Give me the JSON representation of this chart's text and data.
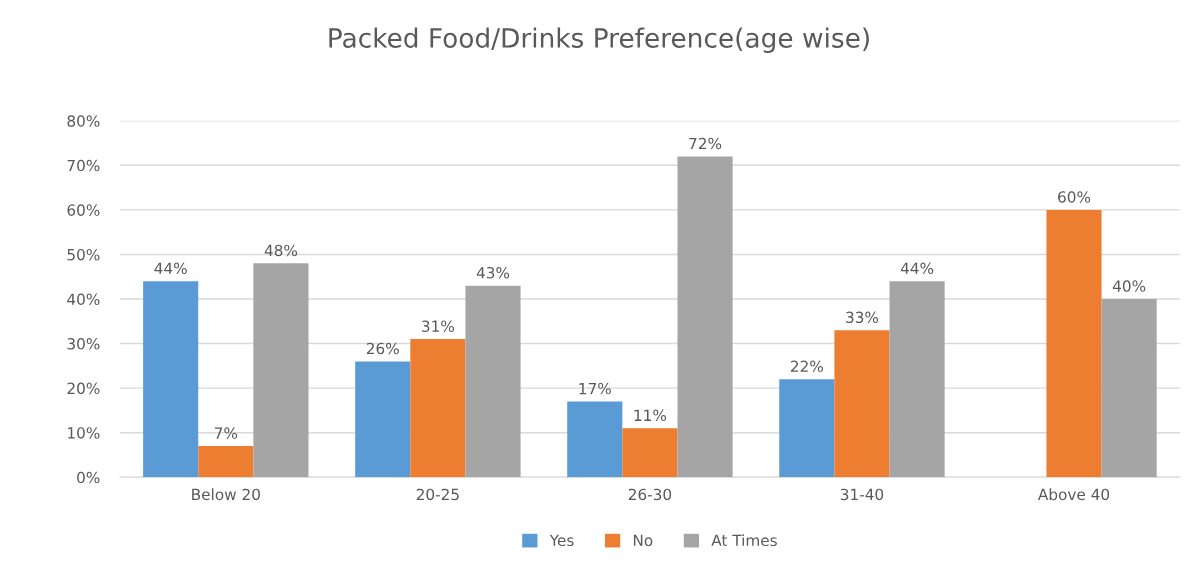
{
  "chart_data": {
    "type": "bar",
    "title": "Packed Food/Drinks Preference(age wise)",
    "categories": [
      "Below 20",
      "20-25",
      "26-30",
      "31-40",
      "Above 40"
    ],
    "series": [
      {
        "name": "Yes",
        "color": "#5b9bd5",
        "values": [
          44,
          26,
          17,
          22,
          null
        ],
        "value_labels": [
          "44%",
          "26%",
          "17%",
          "22%",
          null
        ]
      },
      {
        "name": "No",
        "color": "#ed7d31",
        "values": [
          7,
          31,
          11,
          33,
          60
        ],
        "value_labels": [
          "7%",
          "31%",
          "11%",
          "33%",
          "60%"
        ]
      },
      {
        "name": "At Times",
        "color": "#a5a5a5",
        "values": [
          48,
          43,
          72,
          44,
          40
        ],
        "value_labels": [
          "48%",
          "43%",
          "72%",
          "44%",
          "40%"
        ]
      }
    ],
    "ylim": [
      0,
      80
    ],
    "yticks": [
      {
        "value": 0,
        "label": "0%"
      },
      {
        "value": 10,
        "label": "10%"
      },
      {
        "value": 20,
        "label": "20%"
      },
      {
        "value": 30,
        "label": "30%"
      },
      {
        "value": 40,
        "label": "40%"
      },
      {
        "value": 50,
        "label": "50%"
      },
      {
        "value": 60,
        "label": "60%"
      },
      {
        "value": 70,
        "label": "70%"
      },
      {
        "value": 80,
        "label": "80%"
      }
    ],
    "grid": "y",
    "legend": "bottom"
  }
}
